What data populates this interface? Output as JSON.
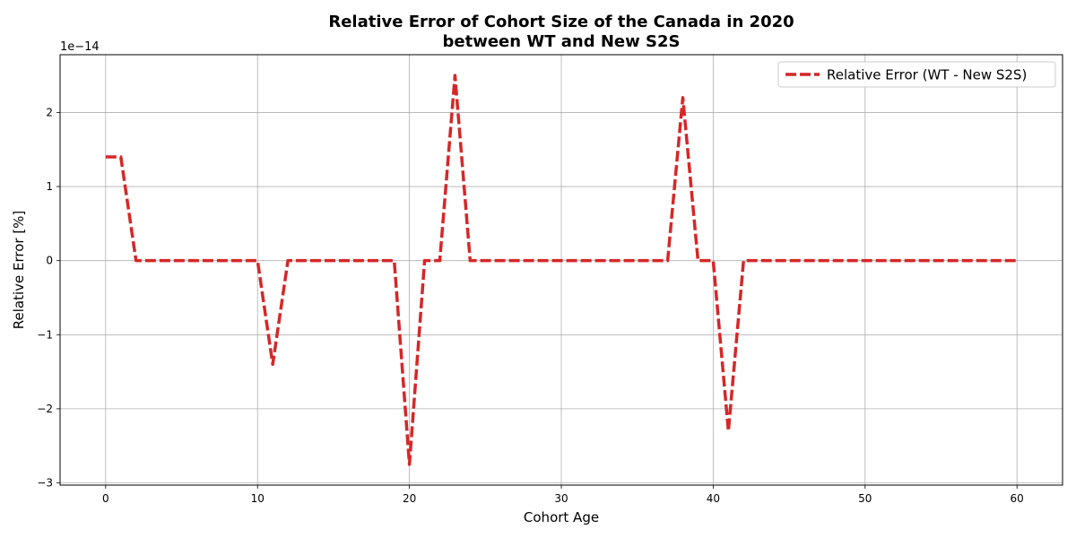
{
  "chart_data": {
    "type": "line",
    "title_line1": "Relative Error of Cohort Size of the Canada in 2020",
    "title_line2": "between WT and New S2S",
    "xlabel": "Cohort Age",
    "ylabel": "Relative Error [%]",
    "y_offset_label": "1e−14",
    "xlim": [
      -3,
      63
    ],
    "ylim": [
      -3.03,
      2.78
    ],
    "x_ticks": [
      0,
      10,
      20,
      30,
      40,
      50,
      60
    ],
    "x_tick_labels": [
      "0",
      "10",
      "20",
      "30",
      "40",
      "50",
      "60"
    ],
    "y_ticks": [
      -3,
      -2,
      -1,
      0,
      1,
      2
    ],
    "y_tick_labels": [
      "−3",
      "−2",
      "−1",
      "0",
      "1",
      "2"
    ],
    "grid": true,
    "legend_position": "top-right",
    "series": [
      {
        "name": "Relative Error (WT - New S2S)",
        "color": "#d62728",
        "line_style": "dashed",
        "x": [
          0,
          1,
          2,
          3,
          4,
          5,
          6,
          7,
          8,
          9,
          10,
          11,
          12,
          13,
          14,
          15,
          16,
          17,
          18,
          19,
          20,
          21,
          22,
          23,
          24,
          25,
          26,
          27,
          28,
          29,
          30,
          31,
          32,
          33,
          34,
          35,
          36,
          37,
          38,
          39,
          40,
          41,
          42,
          43,
          44,
          45,
          46,
          47,
          48,
          49,
          50,
          51,
          52,
          53,
          54,
          55,
          56,
          57,
          58,
          59,
          60
        ],
        "y": [
          1.4,
          1.4,
          0,
          0,
          0,
          0,
          0,
          0,
          0,
          0,
          0,
          -1.4,
          0,
          0,
          0,
          0,
          0,
          0,
          0,
          0,
          -2.75,
          0,
          0,
          2.5,
          0,
          0,
          0,
          0,
          0,
          0,
          0,
          0,
          0,
          0,
          0,
          0,
          0,
          0,
          2.2,
          0,
          0,
          -2.3,
          0,
          0,
          0,
          0,
          0,
          0,
          0,
          0,
          0,
          0,
          0,
          0,
          0,
          0,
          0,
          0,
          0,
          0,
          0
        ]
      }
    ]
  }
}
